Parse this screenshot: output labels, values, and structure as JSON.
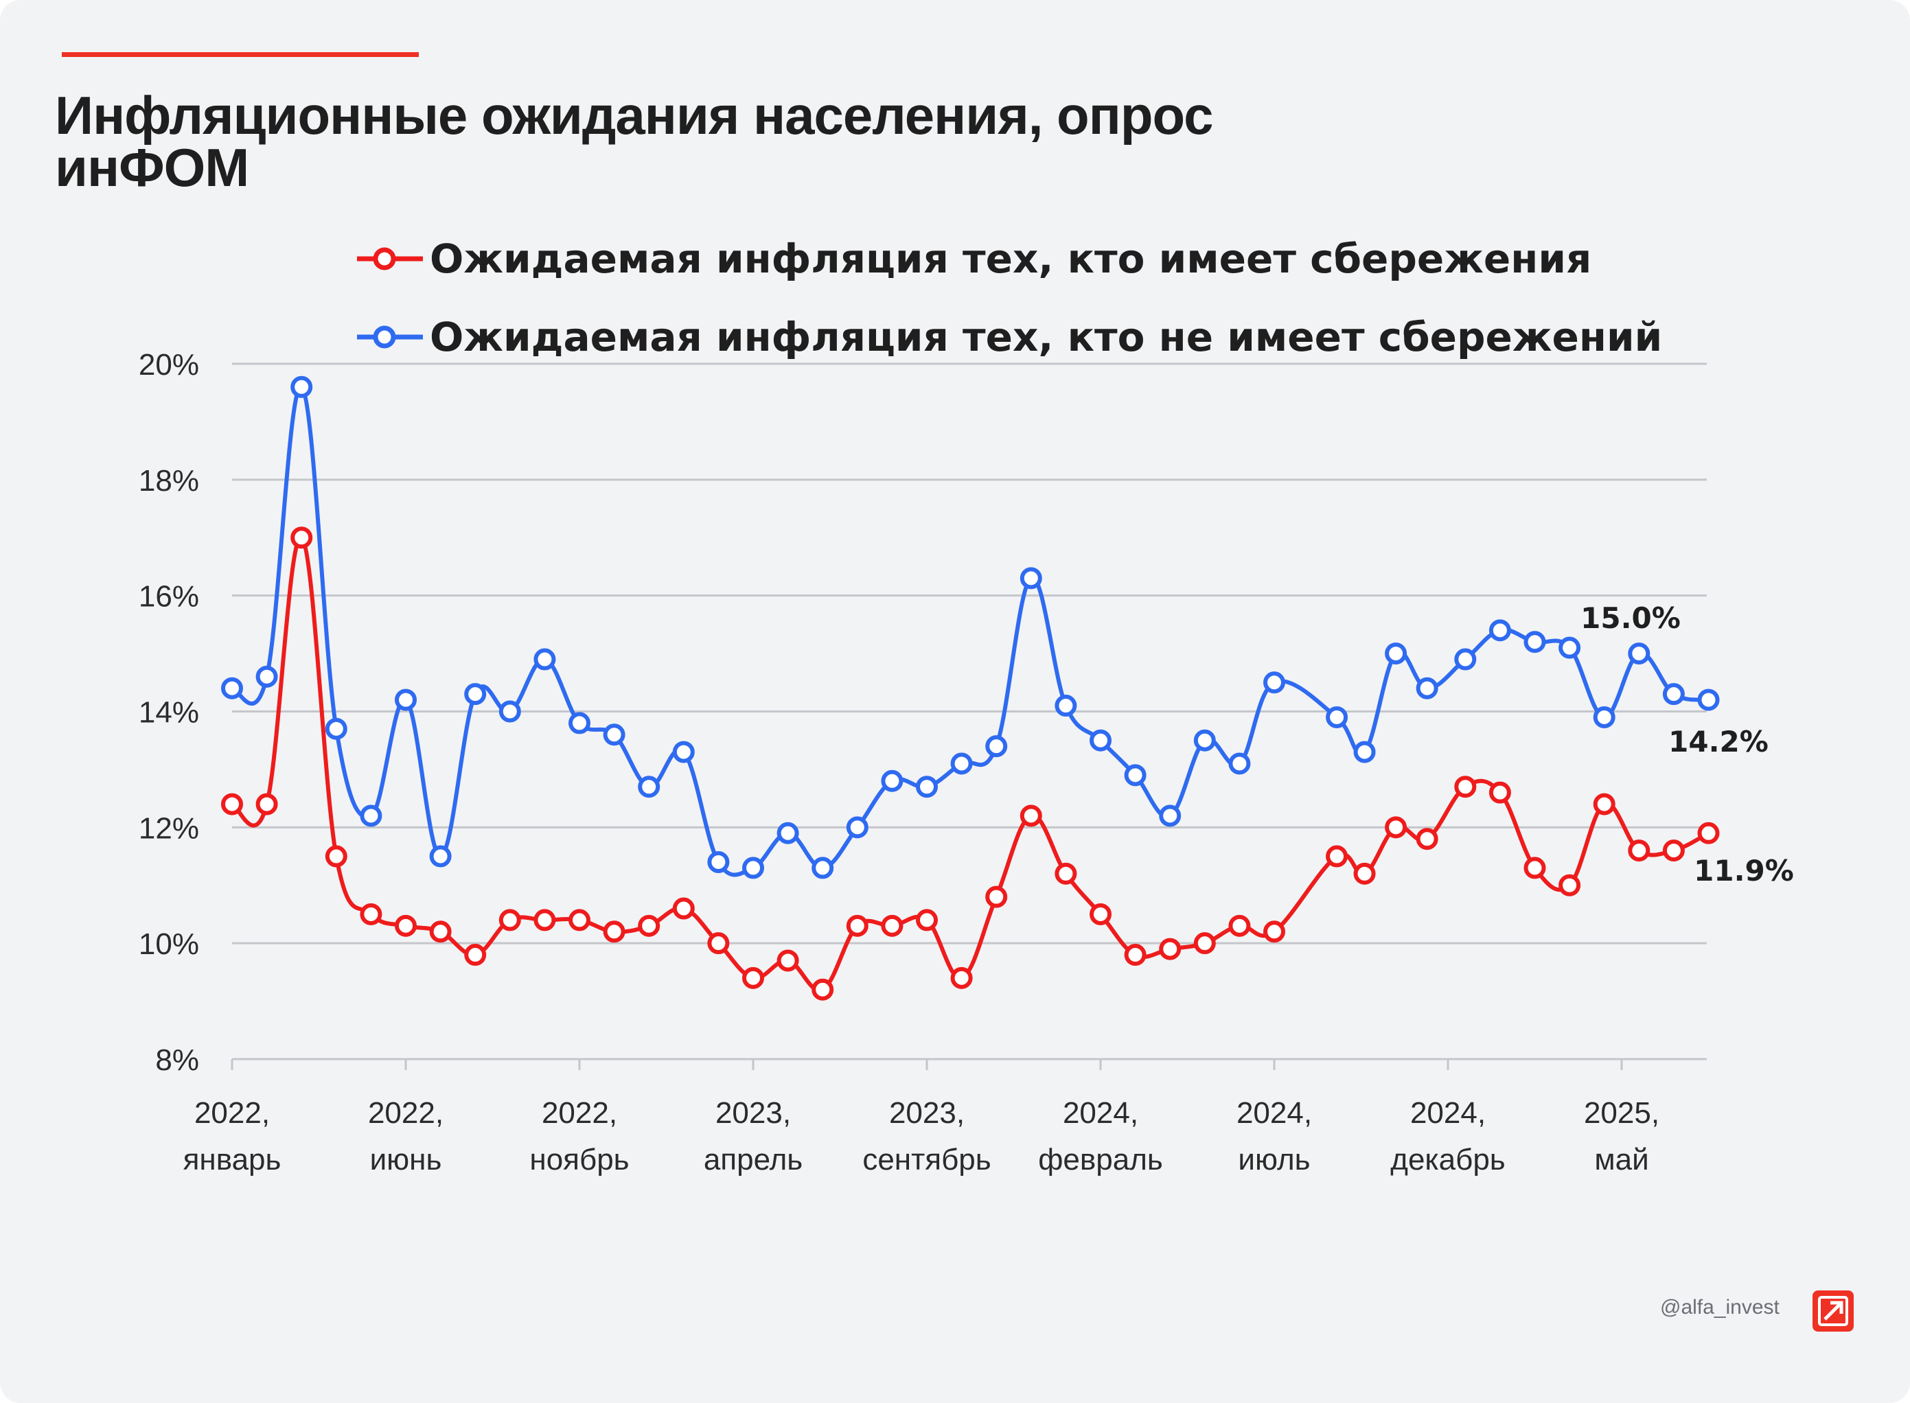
{
  "title_lines": [
    "Инфляционные ожидания населения, опрос",
    "инФОМ"
  ],
  "legend": [
    {
      "label": "Ожидаемая инфляция тех, кто имеет сбережения",
      "color": "#ee1c1c"
    },
    {
      "label": "Ожидаемая инфляция тех, кто не имеет сбережений",
      "color": "#2f6bf0"
    }
  ],
  "footer": {
    "handle": "@alfa_invest",
    "logo_icon": "alfa-arrow-icon"
  },
  "colors": {
    "accent": "#ef3124",
    "background": "#f2f3f5",
    "grid": "#c4c6cb",
    "savers": "#ee1c1c",
    "nonsavers": "#2f6bf0"
  },
  "chart_data": {
    "type": "line",
    "y_ticks": [
      "20%",
      "18%",
      "16%",
      "14%",
      "12%",
      "10%",
      "8%"
    ],
    "y_tick_values": [
      20,
      18,
      16,
      14,
      12,
      10,
      8
    ],
    "ylim": [
      8,
      20
    ],
    "grid": true,
    "legend_position": "top",
    "x_ticks": [
      {
        "line1": "2022,",
        "line2": "январь"
      },
      {
        "line1": "2022,",
        "line2": "июнь"
      },
      {
        "line1": "2022,",
        "line2": "ноябрь"
      },
      {
        "line1": "2023,",
        "line2": "апрель"
      },
      {
        "line1": "2023,",
        "line2": "сентябрь"
      },
      {
        "line1": "2024,",
        "line2": "февраль"
      },
      {
        "line1": "2024,",
        "line2": "июль"
      },
      {
        "line1": "2024,",
        "line2": "декабрь"
      },
      {
        "line1": "2025,",
        "line2": "май"
      }
    ],
    "x_tick_indices": [
      0,
      5,
      10,
      15,
      20,
      25,
      30,
      35,
      40
    ],
    "series": [
      {
        "name": "Ожидаемая инфляция тех, кто имеет сбережения",
        "color": "#ee1c1c",
        "points": [
          [
            0,
            12.4
          ],
          [
            1,
            12.4
          ],
          [
            2,
            17.0
          ],
          [
            3,
            11.5
          ],
          [
            4,
            10.5
          ],
          [
            5,
            10.3
          ],
          [
            6,
            10.2
          ],
          [
            7,
            9.8
          ],
          [
            8,
            10.4
          ],
          [
            9,
            10.4
          ],
          [
            10,
            10.4
          ],
          [
            11,
            10.2
          ],
          [
            12,
            10.3
          ],
          [
            13,
            10.6
          ],
          [
            14,
            10.0
          ],
          [
            15,
            9.4
          ],
          [
            16,
            9.7
          ],
          [
            17,
            9.2
          ],
          [
            18,
            10.3
          ],
          [
            19,
            10.3
          ],
          [
            20,
            10.4
          ],
          [
            21,
            9.4
          ],
          [
            22,
            10.8
          ],
          [
            23,
            12.2
          ],
          [
            24,
            11.2
          ],
          [
            25,
            10.5
          ],
          [
            26,
            9.8
          ],
          [
            27,
            9.9
          ],
          [
            28,
            10.0
          ],
          [
            29,
            10.3
          ],
          [
            30,
            10.2
          ],
          [
            31.8,
            11.5
          ],
          [
            32.6,
            11.2
          ],
          [
            33.5,
            12.0
          ],
          [
            34.4,
            11.8
          ],
          [
            35.5,
            12.7
          ],
          [
            36.5,
            12.6
          ],
          [
            37.5,
            11.3
          ],
          [
            38.5,
            11.0
          ],
          [
            39.5,
            12.4
          ],
          [
            40.5,
            11.6
          ],
          [
            41.5,
            11.6
          ],
          [
            42.5,
            11.9
          ]
        ],
        "end_label": "11.9%"
      },
      {
        "name": "Ожидаемая инфляция тех, кто не имеет сбережений",
        "color": "#2f6bf0",
        "points": [
          [
            0,
            14.4
          ],
          [
            1,
            14.6
          ],
          [
            2,
            19.6
          ],
          [
            3,
            13.7
          ],
          [
            4,
            12.2
          ],
          [
            5,
            14.2
          ],
          [
            6,
            11.5
          ],
          [
            7,
            14.3
          ],
          [
            8,
            14.0
          ],
          [
            9,
            14.9
          ],
          [
            10,
            13.8
          ],
          [
            11,
            13.6
          ],
          [
            12,
            12.7
          ],
          [
            13,
            13.3
          ],
          [
            14,
            11.4
          ],
          [
            15,
            11.3
          ],
          [
            16,
            11.9
          ],
          [
            17,
            11.3
          ],
          [
            18,
            12.0
          ],
          [
            19,
            12.8
          ],
          [
            20,
            12.7
          ],
          [
            21,
            13.1
          ],
          [
            22,
            13.4
          ],
          [
            23,
            16.3
          ],
          [
            24,
            14.1
          ],
          [
            25,
            13.5
          ],
          [
            26,
            12.9
          ],
          [
            27,
            12.2
          ],
          [
            28,
            13.5
          ],
          [
            29,
            13.1
          ],
          [
            30,
            14.5
          ],
          [
            31.8,
            13.9
          ],
          [
            32.6,
            13.3
          ],
          [
            33.5,
            15.0
          ],
          [
            34.4,
            14.4
          ],
          [
            35.5,
            14.9
          ],
          [
            36.5,
            15.4
          ],
          [
            37.5,
            15.2
          ],
          [
            38.5,
            15.1
          ],
          [
            39.5,
            13.9
          ],
          [
            40.5,
            15.0
          ],
          [
            41.5,
            14.3
          ],
          [
            42.5,
            14.2
          ]
        ],
        "annotations": [
          "15.0%",
          "14.2%"
        ]
      }
    ]
  }
}
